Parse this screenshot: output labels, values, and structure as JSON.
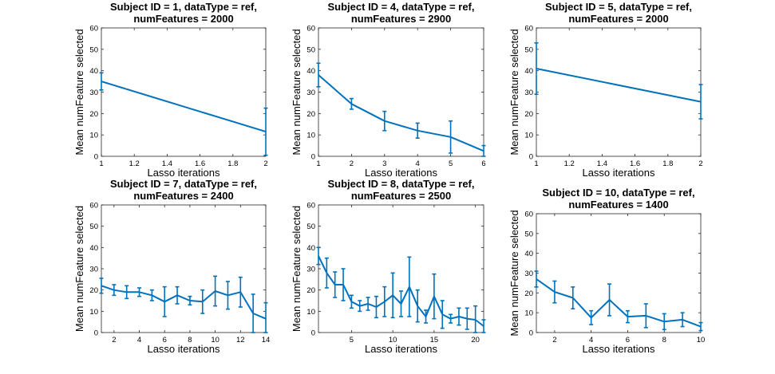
{
  "chart_data": [
    {
      "type": "line",
      "title": [
        "Subject ID = 1, dataType = ref,",
        "numFeatures = 2000"
      ],
      "xlabel": "Lasso iterations",
      "ylabel": "Mean numFeature selected",
      "xlim": [
        1,
        2
      ],
      "ylim": [
        0,
        60
      ],
      "xticks": [
        "1",
        "1.2",
        "1.4",
        "1.6",
        "1.8",
        "2"
      ],
      "yticks": [
        "0",
        "10",
        "20",
        "30",
        "40",
        "50",
        "60"
      ],
      "grid": false,
      "color": "#0072bd",
      "x": [
        1,
        2
      ],
      "y": [
        35,
        11.5
      ],
      "err": [
        4,
        11
      ]
    },
    {
      "type": "line",
      "title": [
        "Subject ID = 4, dataType = ref,",
        "numFeatures = 2900"
      ],
      "xlabel": "Lasso iterations",
      "ylabel": "Mean numFeature selected",
      "xlim": [
        1,
        6
      ],
      "ylim": [
        0,
        60
      ],
      "xticks": [
        "1",
        "2",
        "3",
        "4",
        "5",
        "6"
      ],
      "yticks": [
        "0",
        "10",
        "20",
        "30",
        "40",
        "50",
        "60"
      ],
      "grid": false,
      "color": "#0072bd",
      "x": [
        1,
        2,
        3,
        4,
        5,
        6
      ],
      "y": [
        38,
        24.5,
        16.5,
        12,
        9,
        2.5
      ],
      "err": [
        5.5,
        2.5,
        4.5,
        3.5,
        7.5,
        2.5
      ]
    },
    {
      "type": "line",
      "title": [
        "Subject ID = 5, dataType = ref,",
        "numFeatures = 2000"
      ],
      "xlabel": "Lasso iterations",
      "ylabel": "Mean numFeature selected",
      "xlim": [
        1,
        2
      ],
      "ylim": [
        0,
        60
      ],
      "xticks": [
        "1",
        "1.2",
        "1.4",
        "1.6",
        "1.8",
        "2"
      ],
      "yticks": [
        "0",
        "10",
        "20",
        "30",
        "40",
        "50",
        "60"
      ],
      "grid": false,
      "color": "#0072bd",
      "x": [
        1,
        2
      ],
      "y": [
        41,
        25.5
      ],
      "err": [
        12,
        8
      ]
    },
    {
      "type": "line",
      "title": [
        "Subject ID = 7, dataType = ref,",
        "numFeatures = 2400"
      ],
      "xlabel": "Lasso iterations",
      "ylabel": "Mean numFeature selected",
      "xlim": [
        1,
        14
      ],
      "ylim": [
        0,
        60
      ],
      "xticks": [
        "2",
        "4",
        "6",
        "8",
        "10",
        "12",
        "14"
      ],
      "xtick_values": [
        2,
        4,
        6,
        8,
        10,
        12,
        14
      ],
      "yticks": [
        "0",
        "10",
        "20",
        "30",
        "40",
        "50",
        "60"
      ],
      "grid": false,
      "color": "#0072bd",
      "x": [
        1,
        2,
        3,
        4,
        5,
        6,
        7,
        8,
        9,
        10,
        11,
        12,
        13,
        14
      ],
      "y": [
        22,
        20,
        19,
        19,
        17.5,
        14.5,
        17.5,
        15,
        14.5,
        19.5,
        17.5,
        19,
        9,
        6.5
      ],
      "err": [
        3.5,
        2.5,
        3,
        2,
        2.5,
        7,
        4,
        2,
        5.5,
        7,
        6.5,
        7,
        9,
        7.5
      ]
    },
    {
      "type": "line",
      "title": [
        "Subject ID = 8, dataType = ref,",
        "numFeatures = 2500"
      ],
      "xlabel": "Lasso iterations",
      "ylabel": "Mean numFeature selected",
      "xlim": [
        1,
        21
      ],
      "ylim": [
        0,
        60
      ],
      "xticks": [
        "5",
        "10",
        "15",
        "20"
      ],
      "xtick_values": [
        5,
        10,
        15,
        20
      ],
      "yticks": [
        "0",
        "10",
        "20",
        "30",
        "40",
        "50",
        "60"
      ],
      "grid": false,
      "color": "#0072bd",
      "x": [
        1,
        2,
        3,
        4,
        5,
        6,
        7,
        8,
        9,
        10,
        11,
        12,
        13,
        14,
        15,
        16,
        17,
        18,
        19,
        20,
        21
      ],
      "y": [
        36,
        28,
        22.5,
        22.5,
        14.5,
        12.5,
        13.5,
        12,
        14.5,
        17.5,
        13.5,
        21.5,
        12.5,
        7.5,
        17,
        8.5,
        6.5,
        7.5,
        6.5,
        6,
        3
      ],
      "err": [
        4,
        7,
        6,
        7.5,
        3,
        2.5,
        3,
        5,
        7,
        10.5,
        6,
        14,
        7.5,
        3,
        10.5,
        6.5,
        2,
        4,
        5,
        6.5,
        3
      ]
    },
    {
      "type": "line",
      "title": [
        "Subject ID = 10, dataType = ref,",
        "numFeatures = 1400"
      ],
      "xlabel": "Lasso iterations",
      "ylabel": "Mean numFeature selected",
      "xlim": [
        1,
        10
      ],
      "ylim": [
        0,
        60
      ],
      "xticks": [
        "2",
        "4",
        "6",
        "8",
        "10"
      ],
      "xtick_values": [
        2,
        4,
        6,
        8,
        10
      ],
      "yticks": [
        "0",
        "10",
        "20",
        "30",
        "40",
        "50",
        "60"
      ],
      "grid": false,
      "color": "#0072bd",
      "x": [
        1,
        2,
        3,
        4,
        5,
        6,
        7,
        8,
        9,
        10
      ],
      "y": [
        27,
        20.5,
        17.5,
        7.5,
        16.5,
        8,
        8.5,
        5.5,
        6.5,
        3
      ],
      "err": [
        4,
        5.5,
        5.5,
        3.5,
        8,
        3,
        6,
        4,
        3.5,
        2
      ]
    }
  ]
}
